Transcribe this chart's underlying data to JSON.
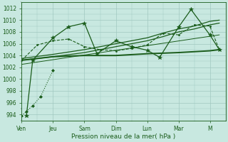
{
  "xlabel": "Pression niveau de la mer( hPa )",
  "background_color": "#c8e8e0",
  "grid_color": "#a0c8c0",
  "line_color": "#1a5c1a",
  "ylim": [
    993,
    1013
  ],
  "yticks": [
    994,
    996,
    998,
    1000,
    1002,
    1004,
    1006,
    1008,
    1010,
    1012
  ],
  "xlim": [
    0,
    6.5
  ],
  "xtick_pos": [
    0,
    1,
    2,
    3,
    4,
    5,
    6
  ],
  "xtick_labels": [
    "Ven",
    "Jeu",
    "Sam",
    "Dim",
    "Lun",
    "Mar",
    "M"
  ],
  "series": [
    {
      "x": [
        0,
        0.15,
        0.35,
        0.6,
        1.0
      ],
      "y": [
        993.8,
        994.5,
        995.5,
        997.0,
        1001.5
      ],
      "ls": ":",
      "marker": "D",
      "ms": 2,
      "lw": 0.8
    },
    {
      "x": [
        0.15,
        0.35,
        1.0,
        1.5,
        2.0,
        2.4,
        3.0,
        3.5,
        4.0,
        4.4,
        5.0,
        5.4,
        6.0,
        6.3
      ],
      "y": [
        993.8,
        1003.2,
        1007.0,
        1008.9,
        1009.5,
        1004.3,
        1006.5,
        1005.5,
        1004.9,
        1003.7,
        1008.8,
        1011.8,
        1007.5,
        1005.0
      ],
      "ls": "-",
      "marker": "*",
      "ms": 4,
      "lw": 0.9
    },
    {
      "x": [
        0,
        1.0,
        2.0,
        2.5,
        3.0,
        3.5,
        4.0,
        4.5,
        5.0,
        5.5,
        6.0,
        6.3
      ],
      "y": [
        1003.2,
        1003.8,
        1004.5,
        1005.0,
        1005.5,
        1006.0,
        1006.5,
        1007.2,
        1008.0,
        1008.5,
        1009.2,
        1009.5
      ],
      "ls": "-",
      "marker": null,
      "ms": 0,
      "lw": 0.9
    },
    {
      "x": [
        0,
        1.0,
        2.0,
        2.5,
        3.0,
        3.5,
        4.0,
        4.5,
        5.0,
        5.5,
        6.0,
        6.3
      ],
      "y": [
        1003.5,
        1004.2,
        1005.0,
        1005.5,
        1006.0,
        1006.5,
        1007.0,
        1007.8,
        1008.5,
        1009.0,
        1009.8,
        1010.0
      ],
      "ls": "-",
      "marker": null,
      "ms": 0,
      "lw": 0.9
    },
    {
      "x": [
        0,
        0.5,
        1.0,
        1.5,
        2.0,
        2.5,
        3.0,
        3.5,
        4.0,
        4.5,
        5.0,
        5.5,
        6.0,
        6.3
      ],
      "y": [
        1003.2,
        1005.8,
        1006.5,
        1006.8,
        1005.5,
        1005.0,
        1004.8,
        1005.2,
        1005.8,
        1007.8,
        1007.5,
        1009.2,
        1009.0,
        1005.0
      ],
      "ls": "--",
      "marker": ".",
      "ms": 3,
      "lw": 0.8
    },
    {
      "x": [
        0,
        1.0,
        2.0,
        3.0,
        4.0,
        5.0,
        6.0,
        6.3
      ],
      "y": [
        1003.2,
        1003.8,
        1004.0,
        1004.0,
        1004.3,
        1004.5,
        1004.8,
        1005.0
      ],
      "ls": "-",
      "marker": null,
      "ms": 0,
      "lw": 1.4
    },
    {
      "x": [
        0,
        6.3
      ],
      "y": [
        1002.5,
        1007.5
      ],
      "ls": "-",
      "marker": null,
      "ms": 0,
      "lw": 0.7
    }
  ]
}
